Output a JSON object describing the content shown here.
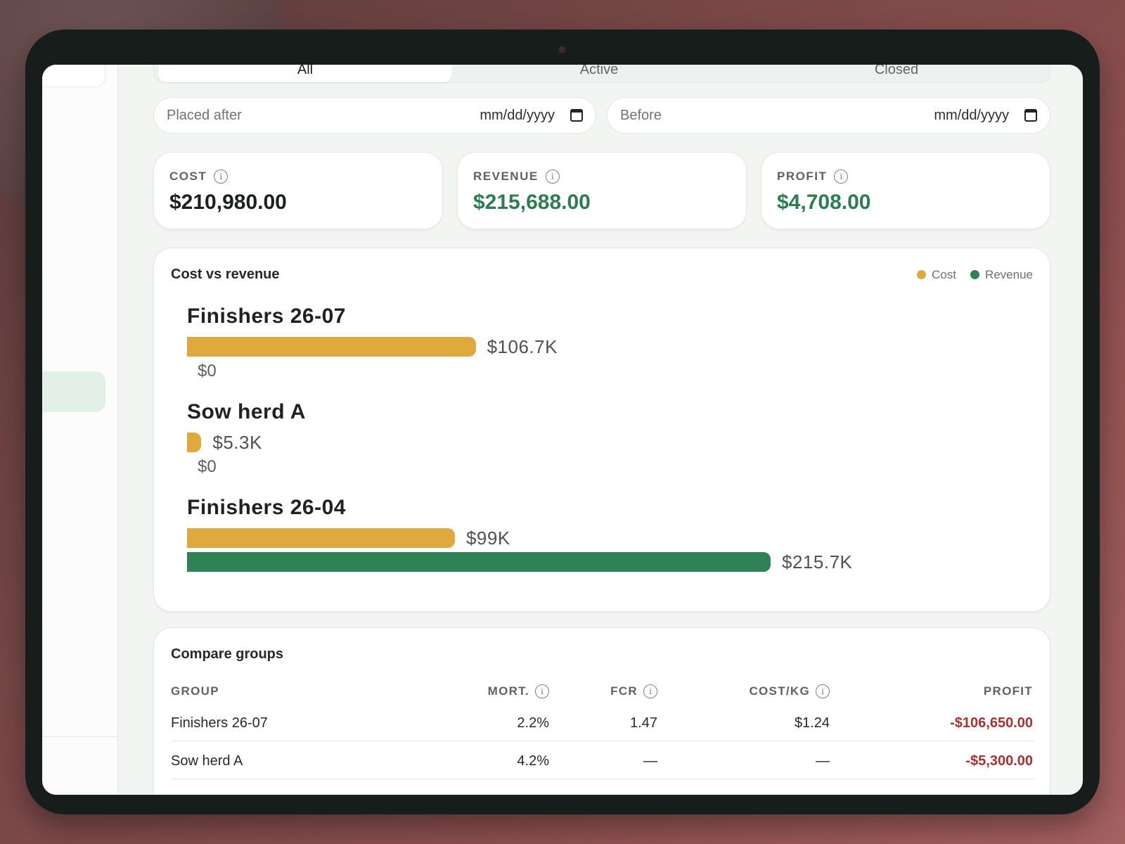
{
  "tabs": [
    "All",
    "Active",
    "Closed"
  ],
  "filters": {
    "after_label": "Placed after",
    "after_value": "mm/dd/yyyy",
    "before_label": "Before",
    "before_value": "mm/dd/yyyy"
  },
  "stats": {
    "cost_label": "COST",
    "cost_value": "$210,980.00",
    "revenue_label": "REVENUE",
    "revenue_value": "$215,688.00",
    "profit_label": "PROFIT",
    "profit_value": "$4,708.00"
  },
  "chart": {
    "title": "Cost vs revenue",
    "legend_cost": "Cost",
    "legend_revenue": "Revenue"
  },
  "chart_data": {
    "type": "bar",
    "categories": [
      "Finishers 26-07",
      "Sow herd A",
      "Finishers 26-04"
    ],
    "series": [
      {
        "name": "Cost",
        "values": [
          106.7,
          5.3,
          99
        ],
        "labels": [
          "$106.7K",
          "$5.3K",
          "$99K"
        ]
      },
      {
        "name": "Revenue",
        "values": [
          0,
          0,
          215.7
        ],
        "labels": [
          "$0",
          "$0",
          "$215.7K"
        ]
      }
    ],
    "title": "Cost vs revenue",
    "colors": {
      "Cost": "#e0a93e",
      "Revenue": "#2f8255"
    },
    "legend": "top-right"
  },
  "compare": {
    "title": "Compare groups",
    "headers": [
      "GROUP",
      "MORT.",
      "FCR",
      "COST/KG",
      "PROFIT"
    ],
    "rows": [
      {
        "group": "Finishers 26-07",
        "mort": "2.2%",
        "fcr": "1.47",
        "cost_kg": "$1.24",
        "profit": "-$106,650.00"
      },
      {
        "group": "Sow herd A",
        "mort": "4.2%",
        "fcr": "—",
        "cost_kg": "—",
        "profit": "-$5,300.00"
      }
    ]
  },
  "icons": {
    "info": "info-icon",
    "calendar": "calendar-icon"
  }
}
